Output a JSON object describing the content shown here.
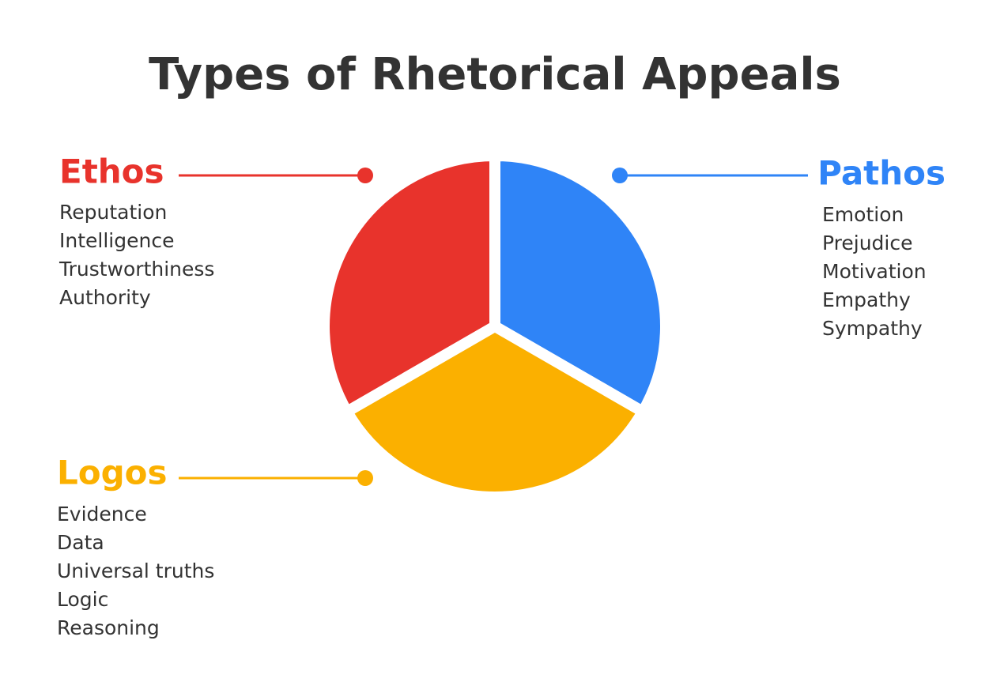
{
  "title": "Types of Rhetorical Appeals",
  "groups": [
    {
      "label": "Ethos",
      "color": "#e8332c",
      "items": [
        "Reputation",
        "Intelligence",
        "Trustworthiness",
        "Authority"
      ]
    },
    {
      "label": "Pathos",
      "color": "#2f84f7",
      "items": [
        "Emotion",
        "Prejudice",
        "Motivation",
        "Empathy",
        "Sympathy"
      ]
    },
    {
      "label": "Logos",
      "color": "#fbb000",
      "items": [
        "Evidence",
        "Data",
        "Universal truths",
        "Logic",
        "Reasoning"
      ]
    }
  ]
}
